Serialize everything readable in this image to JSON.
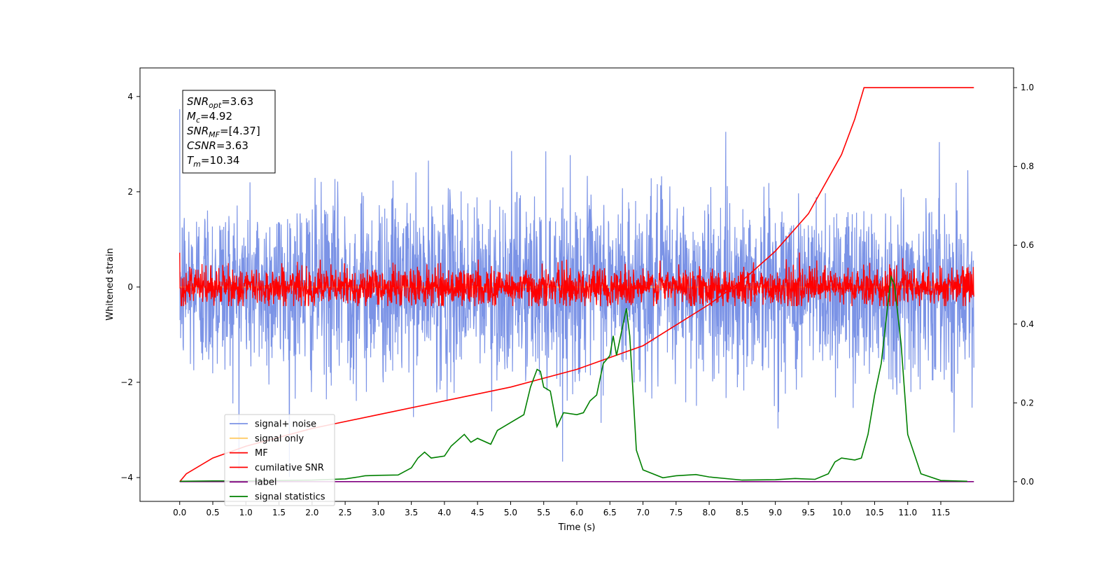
{
  "chart_data": {
    "type": "line",
    "title": "",
    "xlabel": "Time (s)",
    "ylabel": "Whitened strain",
    "xlim": [
      -0.6,
      12.6
    ],
    "ylim": [
      -4.5,
      4.6
    ],
    "y2lim": [
      -0.05,
      1.05
    ],
    "x_ticks": [
      "0.0",
      "0.5",
      "1.0",
      "1.5",
      "2.0",
      "2.5",
      "3.0",
      "3.5",
      "4.0",
      "4.5",
      "5.0",
      "5.5",
      "6.0",
      "6.5",
      "7.0",
      "7.5",
      "8.0",
      "8.5",
      "9.0",
      "9.5",
      "10.0",
      "10.5",
      "11.0",
      "11.5"
    ],
    "y_ticks": [
      "-4",
      "-2",
      "0",
      "2",
      "4"
    ],
    "y2_ticks": [
      "0.0",
      "0.2",
      "0.4",
      "0.6",
      "0.8",
      "1.0"
    ],
    "grid": false,
    "legend_position": "lower-left",
    "annotation": [
      {
        "sym": "SNR",
        "sub": "opt",
        "rest": "=3.63"
      },
      {
        "sym": "M",
        "sub": "c",
        "rest": "=4.92"
      },
      {
        "sym": "SNR",
        "sub": "MF",
        "rest": "=[4.37]"
      },
      {
        "sym": "CSNR",
        "sub": "",
        "rest": "=3.63"
      },
      {
        "sym": "T",
        "sub": "m",
        "rest": "=10.34"
      }
    ],
    "series": [
      {
        "name": "signal+ noise",
        "color": "#7b93e6",
        "axis": "left",
        "kind": "noise",
        "x_range": [
          0,
          12.0
        ],
        "std": 0.95,
        "y_min": -4.1,
        "y_max": 4.15
      },
      {
        "name": "signal only",
        "color": "#ffcc66",
        "axis": "left",
        "kind": "flat",
        "x": [
          0,
          12.0
        ],
        "y": [
          0,
          0
        ]
      },
      {
        "name": "MF",
        "color": "#ff0000",
        "axis": "left",
        "kind": "noise",
        "x_range": [
          0,
          12.0
        ],
        "std": 0.2,
        "y_min": -0.4,
        "y_max": 0.8
      },
      {
        "name": "cumilative SNR",
        "color": "#ff0000",
        "axis": "right",
        "kind": "curve",
        "x": [
          0,
          0.1,
          0.5,
          1,
          2,
          3,
          4,
          5,
          6,
          7,
          8,
          8.5,
          9,
          9.5,
          10,
          10.2,
          10.34,
          10.5,
          11,
          11.5,
          12.0
        ],
        "y": [
          0.0,
          0.02,
          0.06,
          0.09,
          0.135,
          0.17,
          0.205,
          0.24,
          0.285,
          0.345,
          0.45,
          0.51,
          0.585,
          0.68,
          0.83,
          0.92,
          1.0,
          1.0,
          1.0,
          1.0,
          1.0
        ]
      },
      {
        "name": "label",
        "color": "#800080",
        "axis": "right",
        "kind": "flat",
        "x": [
          0,
          12.0
        ],
        "y": [
          0,
          0
        ]
      },
      {
        "name": "signal statistics",
        "color": "#008000",
        "axis": "right",
        "kind": "curve",
        "x": [
          0,
          0.5,
          1,
          1.5,
          2,
          2.5,
          2.7,
          2.8,
          3.0,
          3.3,
          3.5,
          3.6,
          3.7,
          3.8,
          4.0,
          4.1,
          4.3,
          4.4,
          4.5,
          4.7,
          4.8,
          4.9,
          5.0,
          5.2,
          5.3,
          5.4,
          5.45,
          5.5,
          5.6,
          5.7,
          5.8,
          6.0,
          6.1,
          6.2,
          6.3,
          6.4,
          6.5,
          6.55,
          6.6,
          6.7,
          6.75,
          6.8,
          6.9,
          7.0,
          7.3,
          7.5,
          7.8,
          8.0,
          8.5,
          9.0,
          9.3,
          9.6,
          9.8,
          9.9,
          10.0,
          10.2,
          10.3,
          10.4,
          10.5,
          10.6,
          10.7,
          10.75,
          10.8,
          10.9,
          11.0,
          11.2,
          11.5,
          11.9
        ],
        "y": [
          0.001,
          0.002,
          0.002,
          0.003,
          0.004,
          0.007,
          0.012,
          0.015,
          0.016,
          0.017,
          0.035,
          0.06,
          0.075,
          0.06,
          0.065,
          0.09,
          0.12,
          0.1,
          0.11,
          0.095,
          0.13,
          0.14,
          0.15,
          0.17,
          0.24,
          0.285,
          0.28,
          0.24,
          0.23,
          0.14,
          0.175,
          0.17,
          0.175,
          0.205,
          0.22,
          0.3,
          0.32,
          0.37,
          0.32,
          0.4,
          0.44,
          0.37,
          0.08,
          0.03,
          0.01,
          0.015,
          0.018,
          0.012,
          0.004,
          0.005,
          0.008,
          0.006,
          0.02,
          0.05,
          0.06,
          0.055,
          0.06,
          0.12,
          0.22,
          0.3,
          0.45,
          0.52,
          0.5,
          0.35,
          0.12,
          0.02,
          0.003,
          0.001
        ]
      }
    ]
  }
}
